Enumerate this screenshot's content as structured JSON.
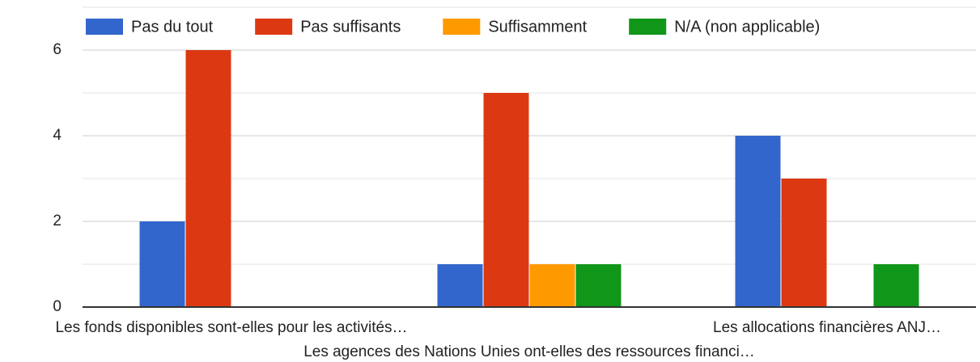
{
  "chart_data": {
    "type": "bar",
    "categories": [
      "Les fonds disponibles sont-elles pour les activités…",
      "Les agences des Nations Unies ont-elles des ressources financi…",
      "Les allocations financières ANJ…"
    ],
    "series": [
      {
        "name": "Pas du tout",
        "color": "#3366cc",
        "values": [
          2,
          1,
          4
        ]
      },
      {
        "name": "Pas suffisants",
        "color": "#dc3912",
        "values": [
          6,
          5,
          3
        ]
      },
      {
        "name": "Suffisamment",
        "color": "#ff9900",
        "values": [
          0,
          1,
          0
        ]
      },
      {
        "name": "N/A (non applicable)",
        "color": "#109618",
        "values": [
          0,
          1,
          1
        ]
      }
    ],
    "ylim": [
      0,
      7
    ],
    "yticks": [
      0,
      2,
      4,
      6
    ],
    "minor_yticks": [
      1,
      3,
      5,
      7
    ],
    "grid": true,
    "legend": "top"
  }
}
